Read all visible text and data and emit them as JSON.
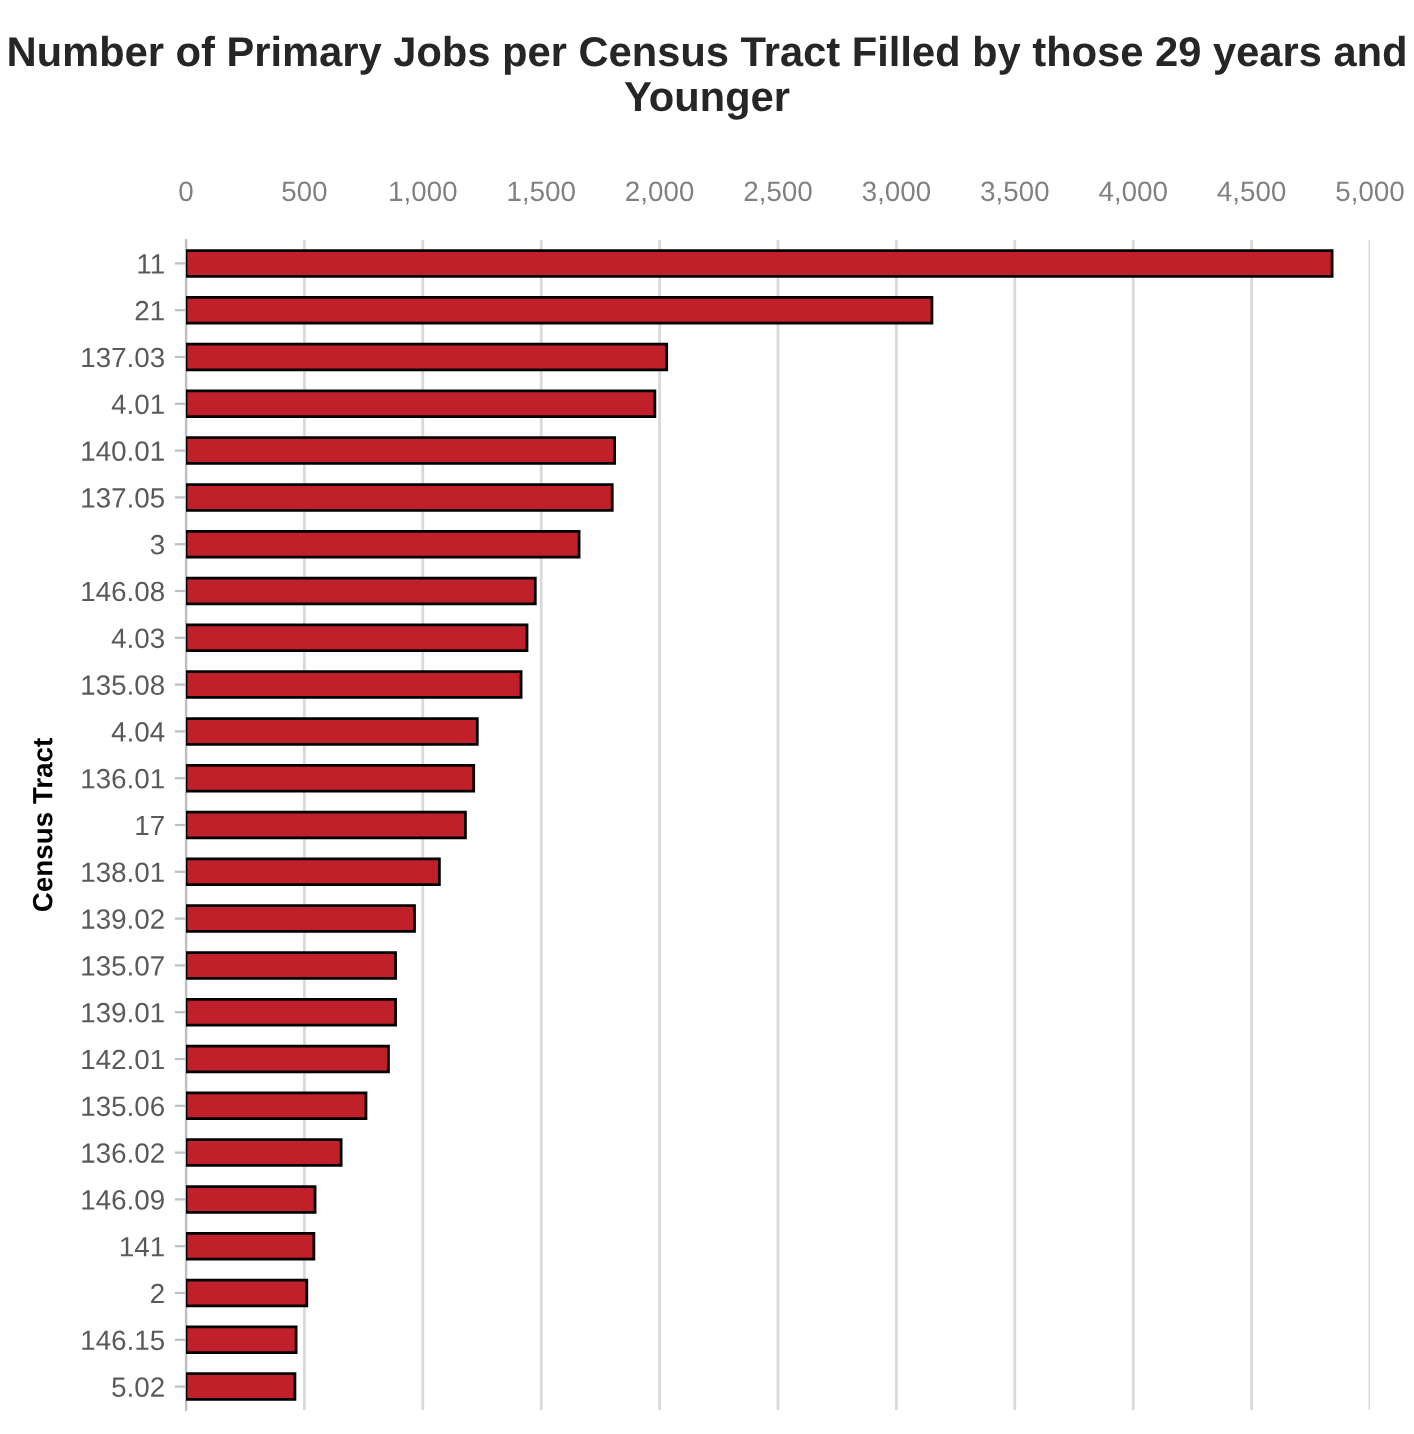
{
  "chart_data": {
    "type": "bar",
    "orientation": "horizontal",
    "title": "Number of Primary Jobs per Census Tract Filled by those 29 years and Younger",
    "ylabel": "Census Tract",
    "categories": [
      "11",
      "21",
      "137.03",
      "4.01",
      "140.01",
      "137.05",
      "3",
      "146.08",
      "4.03",
      "135.08",
      "4.04",
      "136.01",
      "17",
      "138.01",
      "139.02",
      "135.07",
      "139.01",
      "142.01",
      "135.06",
      "136.02",
      "146.09",
      "141",
      "2",
      "146.15",
      "5.02"
    ],
    "values": [
      4840,
      3150,
      2030,
      1980,
      1810,
      1800,
      1660,
      1475,
      1440,
      1415,
      1230,
      1215,
      1180,
      1070,
      965,
      885,
      885,
      855,
      760,
      655,
      545,
      540,
      510,
      465,
      460
    ],
    "color": "#c0202a",
    "xlim": [
      0,
      5000
    ],
    "xticks": [
      {
        "value": 0,
        "label": "0"
      },
      {
        "value": 500,
        "label": "500"
      },
      {
        "value": 1000,
        "label": "1,000"
      },
      {
        "value": 1500,
        "label": "1,500"
      },
      {
        "value": 2000,
        "label": "2,000"
      },
      {
        "value": 2500,
        "label": "2,500"
      },
      {
        "value": 3000,
        "label": "3,000"
      },
      {
        "value": 3500,
        "label": "3,500"
      },
      {
        "value": 4000,
        "label": "4,000"
      },
      {
        "value": 4500,
        "label": "4,500"
      },
      {
        "value": 5000,
        "label": "5,000"
      }
    ],
    "grid": "x",
    "legend": false
  }
}
